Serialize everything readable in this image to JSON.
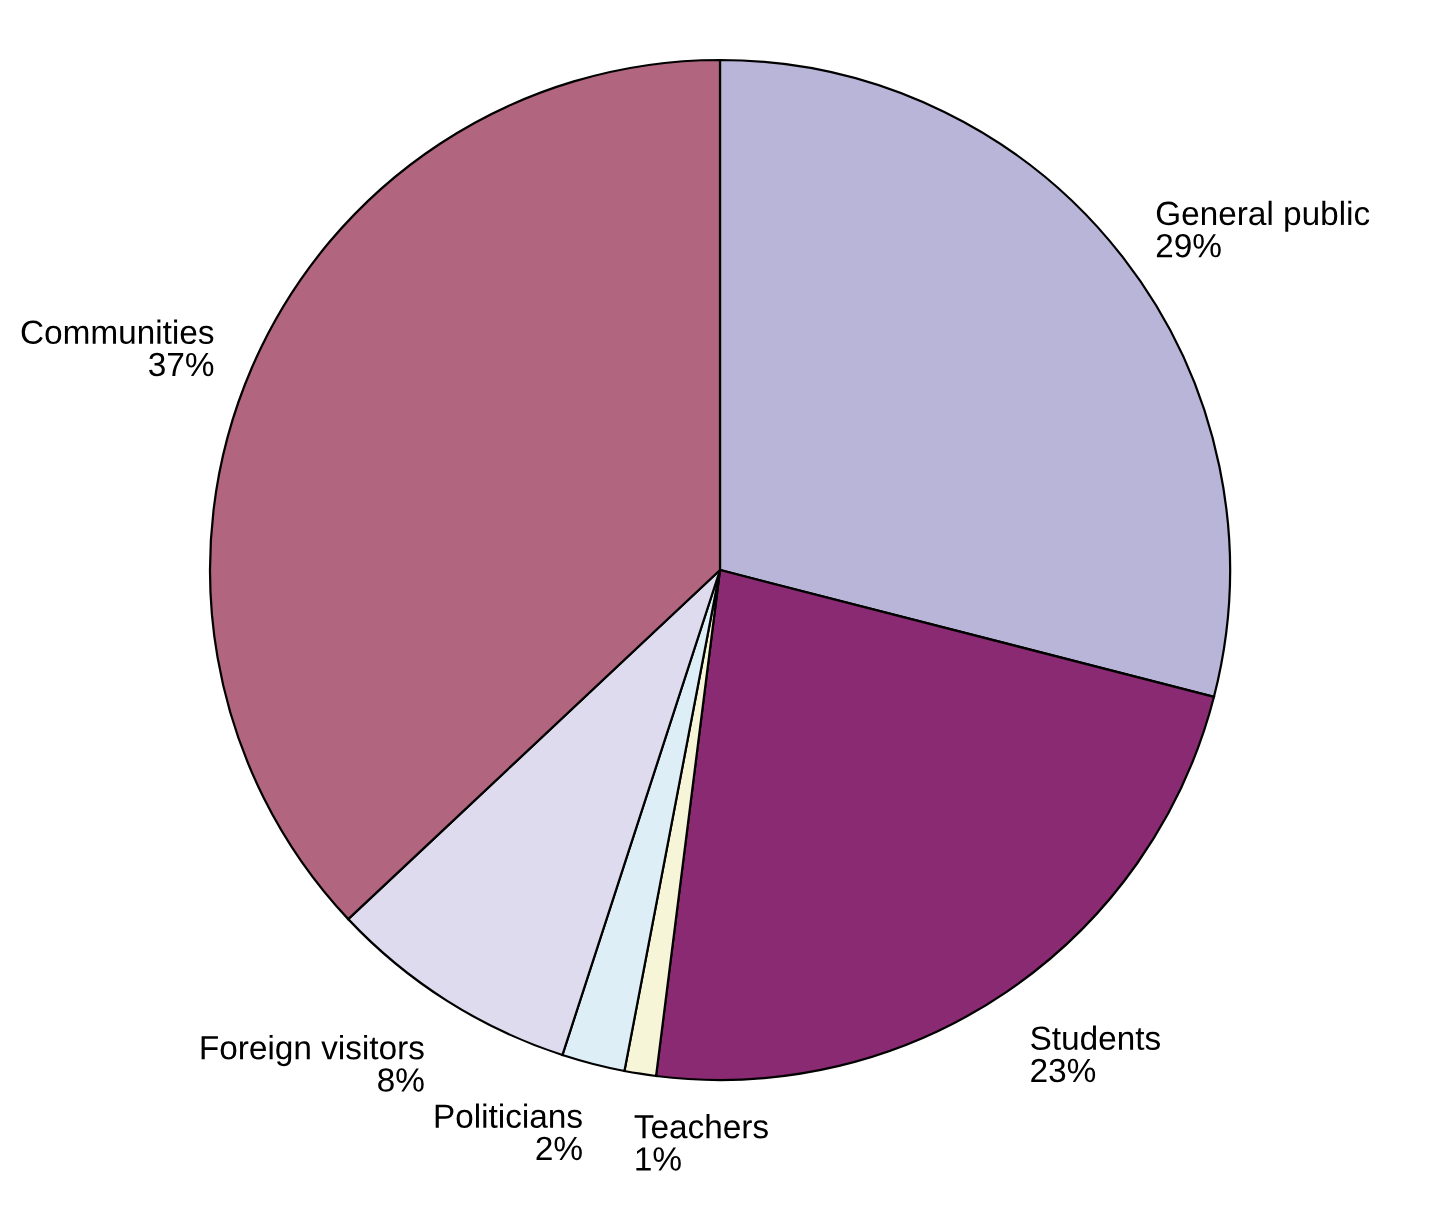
{
  "chart_data": {
    "type": "pie",
    "categories": [
      "General public",
      "Students",
      "Teachers",
      "Politicians",
      "Foreign visitors",
      "Communities"
    ],
    "values": [
      29,
      23,
      1,
      2,
      8,
      37
    ],
    "value_labels": [
      "29%",
      "23%",
      "1%",
      "2%",
      "8%",
      "37%"
    ],
    "colors": [
      "#b9b5d8",
      "#8a2a72",
      "#f7f5d8",
      "#ddeef6",
      "#dedbee",
      "#b1657e"
    ]
  }
}
